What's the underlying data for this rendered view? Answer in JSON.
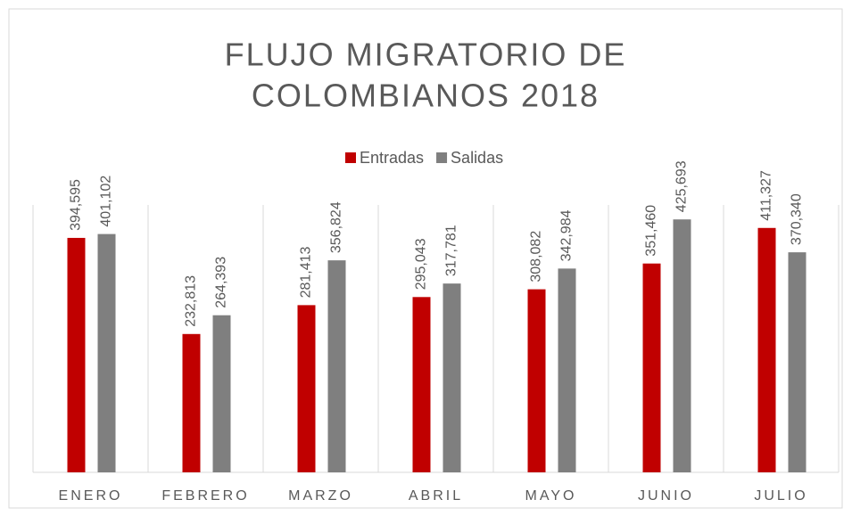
{
  "chart_data": {
    "type": "bar",
    "title": [
      "FLUJO MIGRATORIO DE",
      "COLOMBIANOS 2018"
    ],
    "categories": [
      "ENERO",
      "FEBRERO",
      "MARZO",
      "ABRIL",
      "MAYO",
      "JUNIO",
      "JULIO"
    ],
    "series": [
      {
        "name": "Entradas",
        "color": "#c00000",
        "values": [
          394595,
          232813,
          281413,
          295043,
          308082,
          351460,
          411327
        ],
        "value_labels": [
          "394,595",
          "232,813",
          "281,413",
          "295,043",
          "308,082",
          "351,460",
          "411,327"
        ]
      },
      {
        "name": "Salidas",
        "color": "#7f7f7f",
        "values": [
          401102,
          264393,
          356824,
          317781,
          342984,
          425693,
          370340
        ],
        "value_labels": [
          "401,102",
          "264,393",
          "356,824",
          "317,781",
          "342,984",
          "425,693",
          "370,340"
        ]
      }
    ],
    "ylim": [
      0,
      450000
    ],
    "grid": true,
    "legend": "top"
  }
}
